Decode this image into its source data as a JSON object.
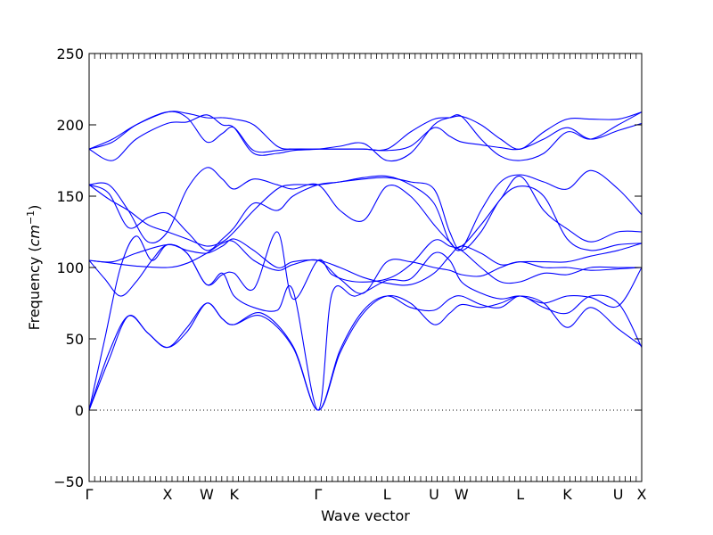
{
  "chart_data": {
    "type": "line",
    "title": "",
    "xlabel": "Wave vector",
    "ylabel_prefix": "Frequency (",
    "ylabel_unit": "cm",
    "ylabel_exp": "−1",
    "ylabel_suffix": ")",
    "ylim": [
      -50,
      250
    ],
    "yticks": [
      "−50",
      "0",
      "50",
      "100",
      "150",
      "200",
      "250"
    ],
    "ytick_values": [
      -50,
      0,
      50,
      100,
      150,
      200,
      250
    ],
    "xlim": [
      0,
      7.05
    ],
    "high_symmetry_points": [
      {
        "label": "Γ",
        "x": 0.0
      },
      {
        "label": "X",
        "x": 1.0
      },
      {
        "label": "W",
        "x": 1.5
      },
      {
        "label": "K",
        "x": 1.85
      },
      {
        "label": "Γ",
        "x": 2.92
      },
      {
        "label": "L",
        "x": 3.8
      },
      {
        "label": "U",
        "x": 4.4
      },
      {
        "label": "W",
        "x": 4.75
      },
      {
        "label": "L",
        "x": 5.5
      },
      {
        "label": "K",
        "x": 6.1
      },
      {
        "label": "U",
        "x": 6.75
      },
      {
        "label": "X",
        "x": 7.05
      }
    ],
    "zero_line": {
      "y": 0,
      "style": "dotted"
    },
    "line_color": "#0000ff",
    "series": [
      {
        "values_x": [
          0,
          0.25,
          0.5,
          0.75,
          1.0,
          1.25,
          1.5,
          1.7,
          1.85,
          2.2,
          2.6,
          2.92,
          3.2,
          3.5,
          3.8,
          4.1,
          4.4,
          4.6,
          4.75,
          5.0,
          5.25,
          5.5,
          5.8,
          6.1,
          6.4,
          6.75,
          7.05
        ],
        "values_y": [
          0,
          40,
          66,
          54,
          44,
          55,
          75,
          64,
          60,
          68,
          45,
          0,
          40,
          68,
          80,
          75,
          60,
          68,
          74,
          72,
          75,
          80,
          75,
          58,
          72,
          57,
          45
        ]
      },
      {
        "values_x": [
          0,
          0.25,
          0.5,
          0.75,
          1.0,
          1.25,
          1.5,
          1.7,
          1.85,
          2.2,
          2.6,
          2.92,
          3.2,
          3.5,
          3.8,
          4.1,
          4.4,
          4.6,
          4.75,
          5.0,
          5.25,
          5.5,
          5.8,
          6.1,
          6.4,
          6.75,
          7.05
        ],
        "values_y": [
          0,
          35,
          66,
          54,
          44,
          58,
          75,
          64,
          60,
          66,
          44,
          0,
          42,
          70,
          80,
          72,
          70,
          78,
          80,
          74,
          72,
          80,
          72,
          68,
          80,
          75,
          44
        ]
      },
      {
        "values_x": [
          0,
          0.2,
          0.4,
          0.6,
          0.8,
          1.0,
          1.25,
          1.5,
          1.7,
          1.85,
          2.1,
          2.4,
          2.6,
          2.92,
          3.1,
          3.4,
          3.8,
          4.1,
          4.4,
          4.6,
          4.75,
          5.0,
          5.25,
          5.5,
          5.8,
          6.1,
          6.4,
          6.75,
          7.05
        ],
        "values_y": [
          0,
          50,
          100,
          122,
          105,
          116,
          110,
          88,
          96,
          80,
          72,
          70,
          84,
          0,
          82,
          80,
          91,
          92,
          110,
          105,
          90,
          82,
          78,
          80,
          75,
          80,
          79,
          73,
          100
        ]
      },
      {
        "values_x": [
          0,
          0.2,
          0.4,
          0.6,
          0.8,
          1.0,
          1.25,
          1.5,
          1.7,
          1.85,
          2.1,
          2.4,
          2.6,
          2.92,
          3.1,
          3.4,
          3.8,
          4.1,
          4.4,
          4.6,
          4.75,
          5.0,
          5.25,
          5.5,
          5.8,
          6.1,
          6.4,
          6.75,
          7.05
        ],
        "values_y": [
          105,
          92,
          80,
          90,
          105,
          116,
          110,
          88,
          95,
          96,
          85,
          125,
          78,
          105,
          95,
          90,
          92,
          102,
          119,
          115,
          112,
          100,
          90,
          90,
          96,
          95,
          100,
          100,
          100
        ]
      },
      {
        "values_x": [
          0,
          0.3,
          0.6,
          1.0,
          1.25,
          1.5,
          1.7,
          1.85,
          2.1,
          2.4,
          2.6,
          2.92,
          3.2,
          3.5,
          3.8,
          4.1,
          4.4,
          4.6,
          4.75,
          5.0,
          5.25,
          5.5,
          5.8,
          6.1,
          6.4,
          6.75,
          7.05
        ],
        "values_y": [
          105,
          103,
          101,
          100,
          103,
          110,
          117,
          118,
          105,
          98,
          102,
          105,
          92,
          82,
          104,
          104,
          100,
          98,
          95,
          94,
          100,
          104,
          100,
          100,
          98,
          99,
          100
        ]
      },
      {
        "values_x": [
          0,
          0.3,
          0.6,
          1.0,
          1.25,
          1.5,
          1.7,
          1.85,
          2.1,
          2.4,
          2.6,
          2.92,
          3.2,
          3.5,
          3.8,
          4.1,
          4.4,
          4.6,
          4.75,
          5.0,
          5.25,
          5.5,
          5.8,
          6.1,
          6.4,
          6.75,
          7.05
        ],
        "values_y": [
          105,
          104,
          110,
          116,
          112,
          110,
          115,
          120,
          112,
          100,
          104,
          105,
          100,
          93,
          89,
          88,
          96,
          108,
          115,
          110,
          102,
          104,
          104,
          104,
          108,
          112,
          117
        ]
      },
      {
        "values_x": [
          0,
          0.25,
          0.5,
          0.75,
          1.0,
          1.25,
          1.5,
          1.7,
          1.85,
          2.1,
          2.4,
          2.6,
          2.92,
          3.2,
          3.5,
          3.8,
          4.1,
          4.4,
          4.6,
          4.75,
          5.0,
          5.25,
          5.5,
          5.8,
          6.1,
          6.4,
          6.75,
          7.05
        ],
        "values_y": [
          158,
          152,
          128,
          135,
          138,
          125,
          112,
          120,
          128,
          145,
          140,
          150,
          158,
          160,
          163,
          164,
          158,
          145,
          118,
          115,
          130,
          148,
          164,
          140,
          127,
          118,
          125,
          125
        ]
      },
      {
        "values_x": [
          0,
          0.25,
          0.5,
          0.75,
          1.0,
          1.25,
          1.5,
          1.7,
          1.85,
          2.1,
          2.4,
          2.6,
          2.92,
          3.2,
          3.5,
          3.8,
          4.1,
          4.4,
          4.6,
          4.75,
          5.0,
          5.25,
          5.5,
          5.8,
          6.1,
          6.4,
          6.75,
          7.05
        ],
        "values_y": [
          158,
          148,
          140,
          130,
          125,
          120,
          115,
          118,
          125,
          140,
          155,
          158,
          158,
          160,
          162,
          163,
          160,
          155,
          125,
          112,
          125,
          148,
          157,
          150,
          120,
          112,
          116,
          117
        ]
      },
      {
        "values_x": [
          0,
          0.25,
          0.5,
          0.75,
          1.0,
          1.25,
          1.5,
          1.7,
          1.85,
          2.1,
          2.4,
          2.6,
          2.92,
          3.2,
          3.5,
          3.8,
          4.1,
          4.4,
          4.6,
          4.75,
          5.0,
          5.25,
          5.5,
          5.8,
          6.1,
          6.4,
          6.75,
          7.05
        ],
        "values_y": [
          158,
          158,
          140,
          118,
          125,
          155,
          170,
          162,
          155,
          162,
          158,
          155,
          158,
          140,
          133,
          157,
          150,
          130,
          118,
          113,
          140,
          160,
          165,
          160,
          155,
          168,
          155,
          137
        ]
      },
      {
        "values_x": [
          0,
          0.3,
          0.6,
          1.0,
          1.25,
          1.5,
          1.7,
          1.85,
          2.1,
          2.4,
          2.6,
          2.92,
          3.2,
          3.5,
          3.8,
          4.1,
          4.4,
          4.6,
          4.75,
          5.0,
          5.25,
          5.5,
          5.8,
          6.1,
          6.4,
          6.75,
          7.05
        ],
        "values_y": [
          183,
          175,
          190,
          201,
          202,
          207,
          200,
          198,
          180,
          180,
          182,
          183,
          185,
          187,
          175,
          180,
          200,
          205,
          206,
          190,
          178,
          175,
          180,
          195,
          190,
          200,
          209
        ]
      },
      {
        "values_x": [
          0,
          0.3,
          0.6,
          1.0,
          1.25,
          1.5,
          1.7,
          1.85,
          2.1,
          2.4,
          2.6,
          2.92,
          3.2,
          3.5,
          3.8,
          4.1,
          4.4,
          4.6,
          4.75,
          5.0,
          5.25,
          5.5,
          5.8,
          6.1,
          6.4,
          6.75,
          7.05
        ],
        "values_y": [
          183,
          190,
          200,
          209,
          208,
          205,
          205,
          204,
          200,
          185,
          183,
          183,
          183,
          183,
          183,
          195,
          204,
          205,
          206,
          200,
          190,
          183,
          195,
          204,
          204,
          204,
          209
        ]
      },
      {
        "values_x": [
          0,
          0.3,
          0.6,
          1.0,
          1.25,
          1.5,
          1.7,
          1.85,
          2.1,
          2.4,
          2.6,
          2.92,
          3.2,
          3.5,
          3.8,
          4.1,
          4.4,
          4.6,
          4.75,
          5.0,
          5.25,
          5.5,
          5.8,
          6.1,
          6.4,
          6.75,
          7.05
        ],
        "values_y": [
          183,
          188,
          200,
          209,
          205,
          188,
          194,
          198,
          182,
          182,
          183,
          183,
          183,
          183,
          182,
          185,
          198,
          192,
          188,
          186,
          184,
          183,
          190,
          198,
          190,
          196,
          201
        ]
      }
    ]
  }
}
